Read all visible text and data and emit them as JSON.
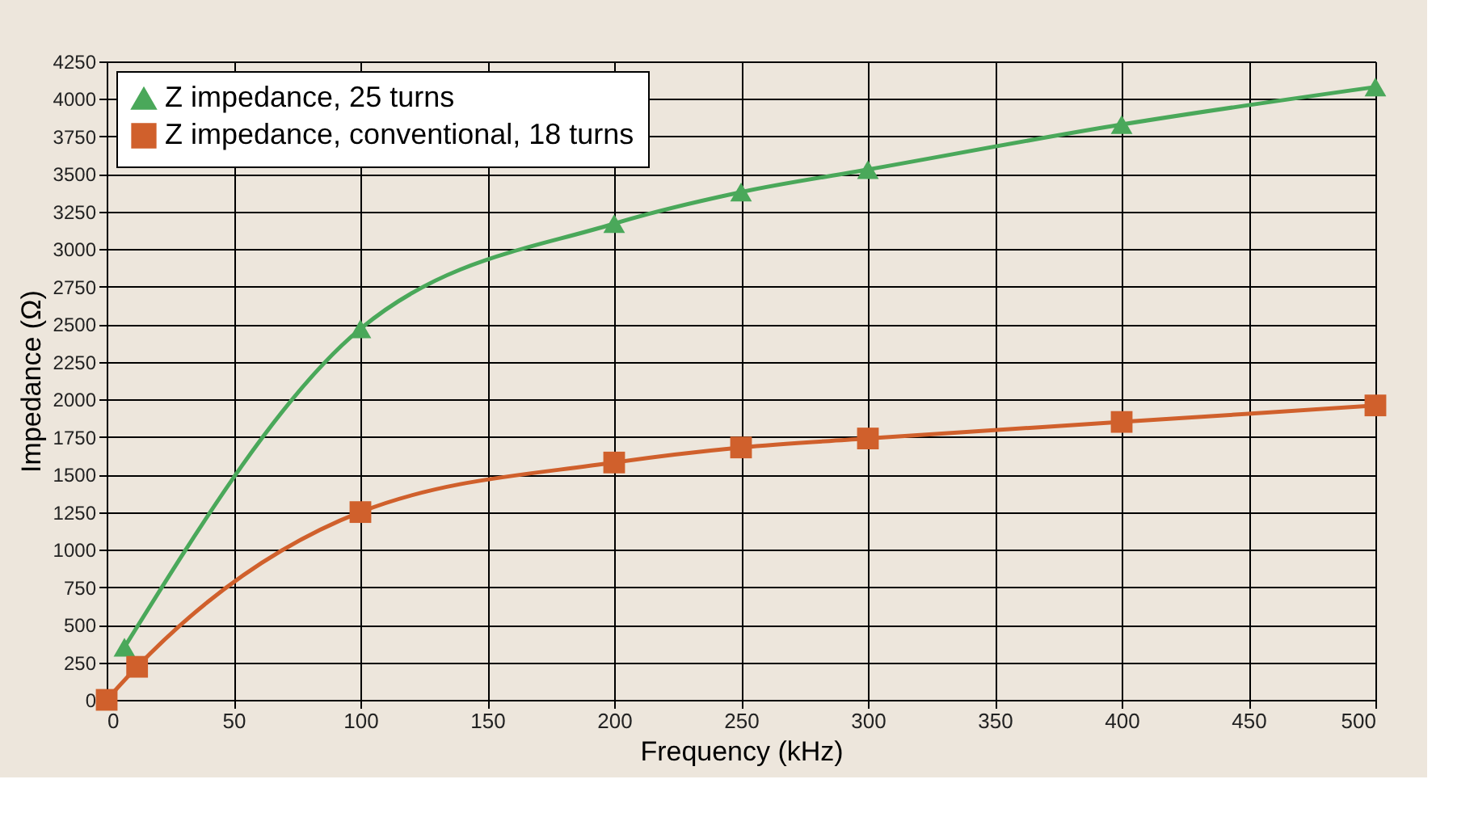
{
  "chart_data": {
    "type": "line",
    "xlabel": "Frequency (kHz)",
    "ylabel": "Impedance (Ω)",
    "series": [
      {
        "name": "Z impedance, 25 turns",
        "color": "#4aa85a",
        "marker": "triangle",
        "x": [
          7,
          100,
          200,
          250,
          300,
          400,
          500
        ],
        "values": [
          350,
          2470,
          3170,
          3380,
          3530,
          3830,
          4080
        ]
      },
      {
        "name": "Z impedance, conventional, 18 turns",
        "color": "#d0602c",
        "marker": "square",
        "x": [
          0,
          12,
          100,
          200,
          250,
          300,
          400,
          500
        ],
        "values": [
          0,
          220,
          1250,
          1580,
          1680,
          1740,
          1850,
          1960
        ]
      }
    ],
    "xlim": [
      0,
      500
    ],
    "xticks": [
      0,
      50,
      100,
      150,
      200,
      250,
      300,
      350,
      400,
      450,
      500
    ],
    "ylim": [
      0,
      4250
    ],
    "yticks": [
      0,
      250,
      500,
      750,
      1000,
      1250,
      1500,
      1750,
      2000,
      2250,
      2500,
      2750,
      3000,
      3250,
      3500,
      3750,
      4000,
      4250
    ],
    "grid": true,
    "legend": "top left",
    "line_style": "solid"
  }
}
